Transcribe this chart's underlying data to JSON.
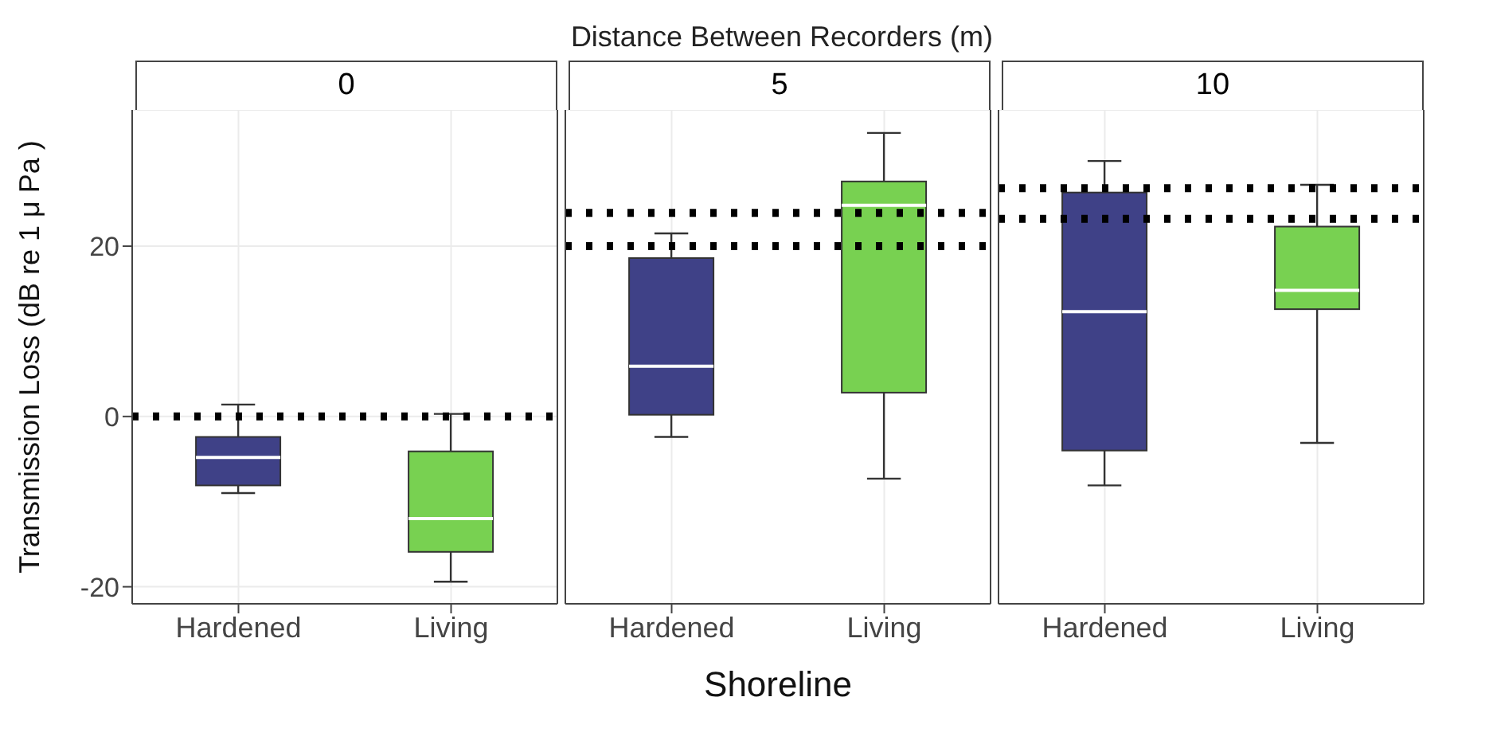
{
  "chart_data": [
    {
      "type": "box",
      "title": "0",
      "ylabel": "Transmission Loss (dB re 1 μ Pa )",
      "categories": [
        "Hardened",
        "Living"
      ],
      "colors": [
        "#3f4187",
        "#78d151"
      ],
      "boxes": [
        {
          "low": -9,
          "q1": -8.1,
          "median": -4.8,
          "q3": -2.4,
          "high": 1.4
        },
        {
          "low": -19.4,
          "q1": -15.9,
          "median": -12,
          "q3": -4.1,
          "high": 0.3
        }
      ],
      "ylim": [
        -22,
        36
      ],
      "yticks": [
        -20,
        0,
        20
      ],
      "grid": true,
      "ref_lines": [
        {
          "axis": "y",
          "value": 0,
          "color": "#000000",
          "line_style": "dotted"
        }
      ]
    },
    {
      "type": "box",
      "title": "5",
      "annotations": [
        "Distance Between Recorders (m)"
      ],
      "xlabel": "Shoreline",
      "categories": [
        "Hardened",
        "Living"
      ],
      "colors": [
        "#3f4187",
        "#78d151"
      ],
      "boxes": [
        {
          "low": -2.4,
          "q1": 0.2,
          "median": 5.9,
          "q3": 18.6,
          "high": 21.5
        },
        {
          "low": -7.3,
          "q1": 2.8,
          "median": 24.8,
          "q3": 27.6,
          "high": 33.3
        }
      ],
      "ylim": [
        -22,
        36
      ],
      "yticks": [
        -20,
        0,
        20
      ],
      "grid": true,
      "tick_labels": "x",
      "ref_lines": [
        {
          "axis": "y",
          "value": 23.9,
          "color": "#000000",
          "line_style": "dotted"
        },
        {
          "axis": "y",
          "value": 20,
          "color": "#000000",
          "line_style": "dotted"
        }
      ]
    },
    {
      "type": "box",
      "title": "10",
      "categories": [
        "Hardened",
        "Living"
      ],
      "colors": [
        "#3f4187",
        "#78d151"
      ],
      "boxes": [
        {
          "low": -8.1,
          "q1": -4,
          "median": 12.3,
          "q3": 26.3,
          "high": 30
        },
        {
          "low": -3.1,
          "q1": 12.6,
          "median": 14.8,
          "q3": 22.3,
          "high": 27.2
        }
      ],
      "ylim": [
        -22,
        36
      ],
      "yticks": [
        -20,
        0,
        20
      ],
      "grid": true,
      "tick_labels": "x",
      "ref_lines": [
        {
          "axis": "y",
          "value": 26.8,
          "color": "#000000",
          "line_style": "dotted"
        },
        {
          "axis": "y",
          "value": 23.2,
          "color": "#000000",
          "line_style": "dotted"
        }
      ]
    }
  ]
}
